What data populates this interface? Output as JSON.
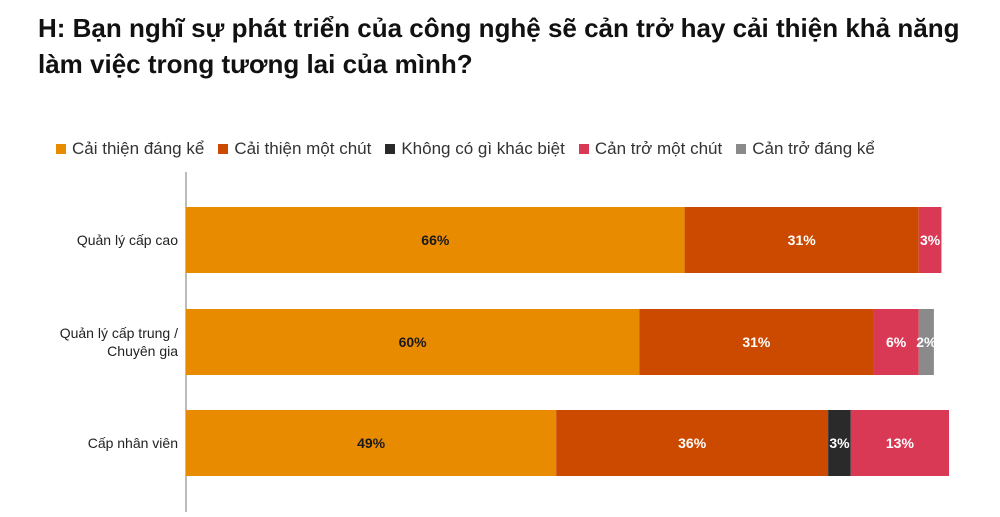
{
  "title": "H: Bạn nghĩ sự phát triển của công nghệ sẽ cản trở hay cải thiện khả năng làm việc trong tương lai của mình?",
  "chart_data": {
    "type": "bar",
    "orientation": "horizontal",
    "stacked": true,
    "categories": [
      "Quản lý cấp cao",
      "Quản lý cấp trung / Chuyên gia",
      "Cấp nhân viên"
    ],
    "series": [
      {
        "name": "Cải thiện đáng kể",
        "color": "#E88B00",
        "values": [
          66,
          60,
          49
        ],
        "labels": [
          "66%",
          "60%",
          "49%"
        ]
      },
      {
        "name": "Cải thiện một chút",
        "color": "#CC4A00",
        "values": [
          31,
          31,
          36
        ],
        "labels": [
          "31%",
          "31%",
          "36%"
        ]
      },
      {
        "name": "Không có gì khác biệt",
        "color": "#2A2A2A",
        "values": [
          0,
          0,
          3
        ],
        "labels": [
          "",
          "",
          "3%"
        ]
      },
      {
        "name": "Cản trở một chút",
        "color": "#D93954",
        "values": [
          3,
          6,
          13
        ],
        "labels": [
          "3%",
          "6%",
          "13%"
        ]
      },
      {
        "name": "Cản trở đáng kể",
        "color": "#8A8A8A",
        "values": [
          0,
          2,
          0
        ],
        "labels": [
          "",
          "2%",
          ""
        ]
      }
    ],
    "xlim": [
      0,
      101
    ],
    "legend_position": "top",
    "grid": false
  }
}
